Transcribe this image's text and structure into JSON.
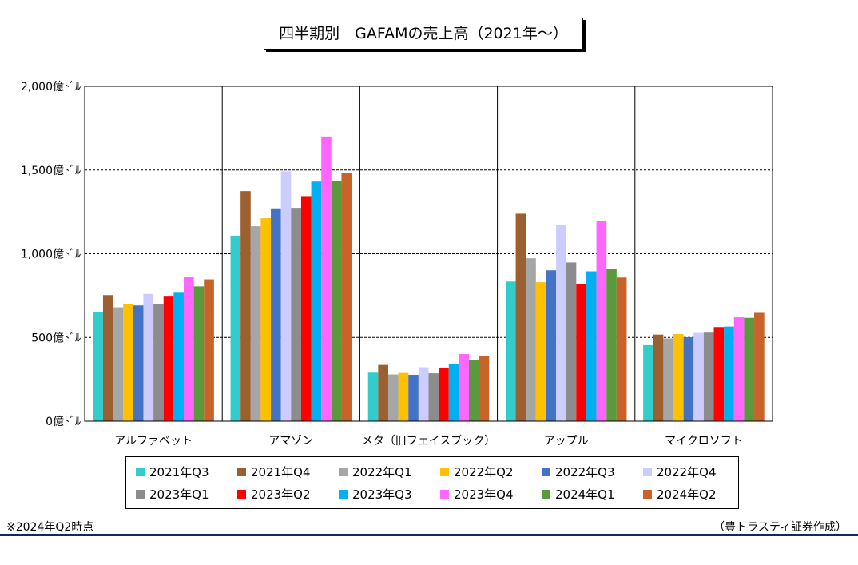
{
  "title": "四半期別　GAFAMの売上高（2021年～）",
  "footnote": "※2024年Q2時点",
  "credit": "（豊トラスティ証券作成）",
  "colors": {
    "frame": "#000000",
    "grid": "#000000",
    "bottom_rule": "#0f2a5c"
  },
  "chart_data": {
    "type": "bar",
    "title": "四半期別　GAFAMの売上高（2021年～）",
    "xlabel": "",
    "ylabel": "",
    "ylim": [
      0,
      2000
    ],
    "yticks": [
      0,
      500,
      1000,
      1500,
      2000
    ],
    "ytick_labels": [
      "0億ﾄﾞﾙ",
      "500億ﾄﾞﾙ",
      "1,000億ﾄﾞﾙ",
      "1,500億ﾄﾞﾙ",
      "2,000億ﾄﾞﾙ"
    ],
    "grid": "horizontal dashed",
    "legend_position": "bottom",
    "categories": [
      "アルファベット",
      "アマゾン",
      "メタ（旧フェイスブック）",
      "アップル",
      "マイクロソフト"
    ],
    "series": [
      {
        "name": "2021年Q3",
        "color": "#33cccc",
        "values": [
          651,
          1108,
          290,
          834,
          454
        ]
      },
      {
        "name": "2021年Q4",
        "color": "#9c6030",
        "values": [
          753,
          1374,
          336,
          1239,
          517
        ]
      },
      {
        "name": "2022年Q1",
        "color": "#a6a6a6",
        "values": [
          680,
          1164,
          279,
          973,
          494
        ]
      },
      {
        "name": "2022年Q2",
        "color": "#ffc000",
        "values": [
          697,
          1212,
          288,
          830,
          520
        ]
      },
      {
        "name": "2022年Q3",
        "color": "#4472c4",
        "values": [
          691,
          1271,
          277,
          901,
          501
        ]
      },
      {
        "name": "2022年Q4",
        "color": "#ccccff",
        "values": [
          760,
          1492,
          322,
          1171,
          527
        ]
      },
      {
        "name": "2023年Q1",
        "color": "#8c8c8c",
        "values": [
          698,
          1274,
          286,
          948,
          529
        ]
      },
      {
        "name": "2023年Q2",
        "color": "#ff0000",
        "values": [
          744,
          1344,
          320,
          818,
          562
        ]
      },
      {
        "name": "2023年Q3",
        "color": "#00b0f0",
        "values": [
          767,
          1431,
          341,
          895,
          565
        ]
      },
      {
        "name": "2023年Q4",
        "color": "#ff66ff",
        "values": [
          863,
          1700,
          401,
          1196,
          620
        ]
      },
      {
        "name": "2024年Q1",
        "color": "#5b9a3c",
        "values": [
          805,
          1434,
          365,
          908,
          617
        ]
      },
      {
        "name": "2024年Q2",
        "color": "#c8642a",
        "values": [
          847,
          1480,
          391,
          858,
          647
        ]
      }
    ]
  }
}
